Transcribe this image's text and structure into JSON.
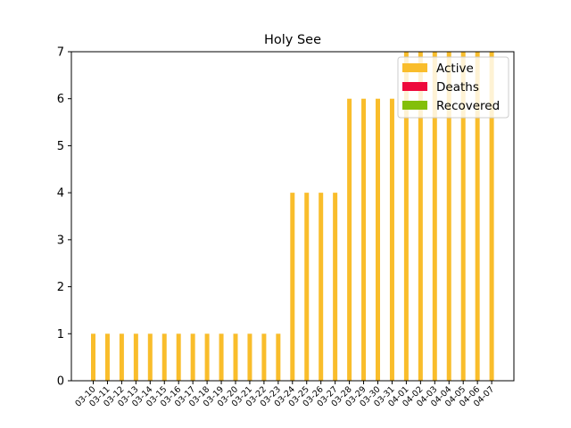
{
  "chart_data": {
    "type": "bar",
    "stacked": true,
    "title": "Holy See",
    "xlabel": "",
    "ylabel": "",
    "ylim": [
      0,
      7
    ],
    "yticks": [
      0,
      1,
      2,
      3,
      4,
      5,
      6,
      7
    ],
    "grid": false,
    "legend_position": "top-right",
    "categories": [
      "03-10",
      "03-11",
      "03-12",
      "03-13",
      "03-14",
      "03-15",
      "03-16",
      "03-17",
      "03-18",
      "03-19",
      "03-20",
      "03-21",
      "03-22",
      "03-23",
      "03-24",
      "03-25",
      "03-26",
      "03-27",
      "03-28",
      "03-29",
      "03-30",
      "03-31",
      "04-01",
      "04-02",
      "04-03",
      "04-04",
      "04-05",
      "04-06",
      "04-07"
    ],
    "series": [
      {
        "name": "Active",
        "color": "#f9bd2b",
        "values": [
          1,
          1,
          1,
          1,
          1,
          1,
          1,
          1,
          1,
          1,
          1,
          1,
          1,
          1,
          4,
          4,
          4,
          4,
          6,
          6,
          6,
          6,
          7,
          7,
          7,
          7,
          7,
          7,
          7
        ]
      },
      {
        "name": "Deaths",
        "color": "#ee0a3c",
        "values": [
          0,
          0,
          0,
          0,
          0,
          0,
          0,
          0,
          0,
          0,
          0,
          0,
          0,
          0,
          0,
          0,
          0,
          0,
          0,
          0,
          0,
          0,
          0,
          0,
          0,
          0,
          0,
          0,
          0
        ]
      },
      {
        "name": "Recovered",
        "color": "#83bf0b",
        "values": [
          0,
          0,
          0,
          0,
          0,
          0,
          0,
          0,
          0,
          0,
          0,
          0,
          0,
          0,
          0,
          0,
          0,
          0,
          0,
          0,
          0,
          0,
          0,
          0,
          0,
          0,
          0,
          0,
          0
        ]
      }
    ]
  }
}
